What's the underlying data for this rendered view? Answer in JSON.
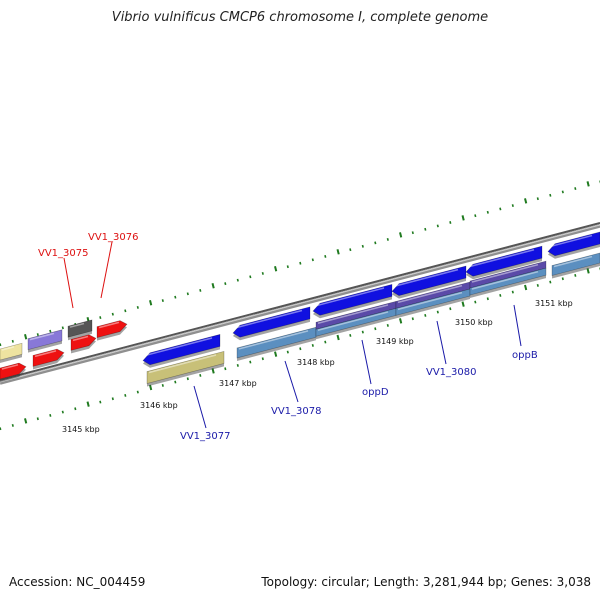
{
  "title": "Vibrio vulnificus CMCP6 chromosome I, complete genome",
  "footer": {
    "accession": "Accession: NC_004459",
    "summary": "Topology: circular; Length: 3,281,944 bp; Genes: 3,038"
  },
  "colors": {
    "backbone": "#8f8f8f",
    "tick": "#1f7a1f",
    "gene_blue": "#1010e0",
    "gene_purple": "#5a4aa8",
    "gene_steel": "#5b8fc0",
    "gene_khaki": "#c8c078",
    "gene_red": "#ee1111",
    "gene_yellow": "#eee3a0",
    "gene_lavender": "#8878d8",
    "gene_gray": "#555555",
    "label_blue": "#1a1aa8",
    "label_red": "#dd1111"
  },
  "tick_labels": [
    "3145 kbp",
    "3146 kbp",
    "3147 kbp",
    "3148 kbp",
    "3149 kbp",
    "3150 kbp",
    "3151 kbp"
  ],
  "gene_labels": [
    {
      "text": "VV1_3075",
      "color": "red"
    },
    {
      "text": "VV1_3076",
      "color": "red"
    },
    {
      "text": "VV1_3077",
      "color": "blue"
    },
    {
      "text": "VV1_3078",
      "color": "blue"
    },
    {
      "text": "oppD",
      "color": "blue"
    },
    {
      "text": "VV1_3080",
      "color": "blue"
    },
    {
      "text": "oppB",
      "color": "blue"
    }
  ]
}
